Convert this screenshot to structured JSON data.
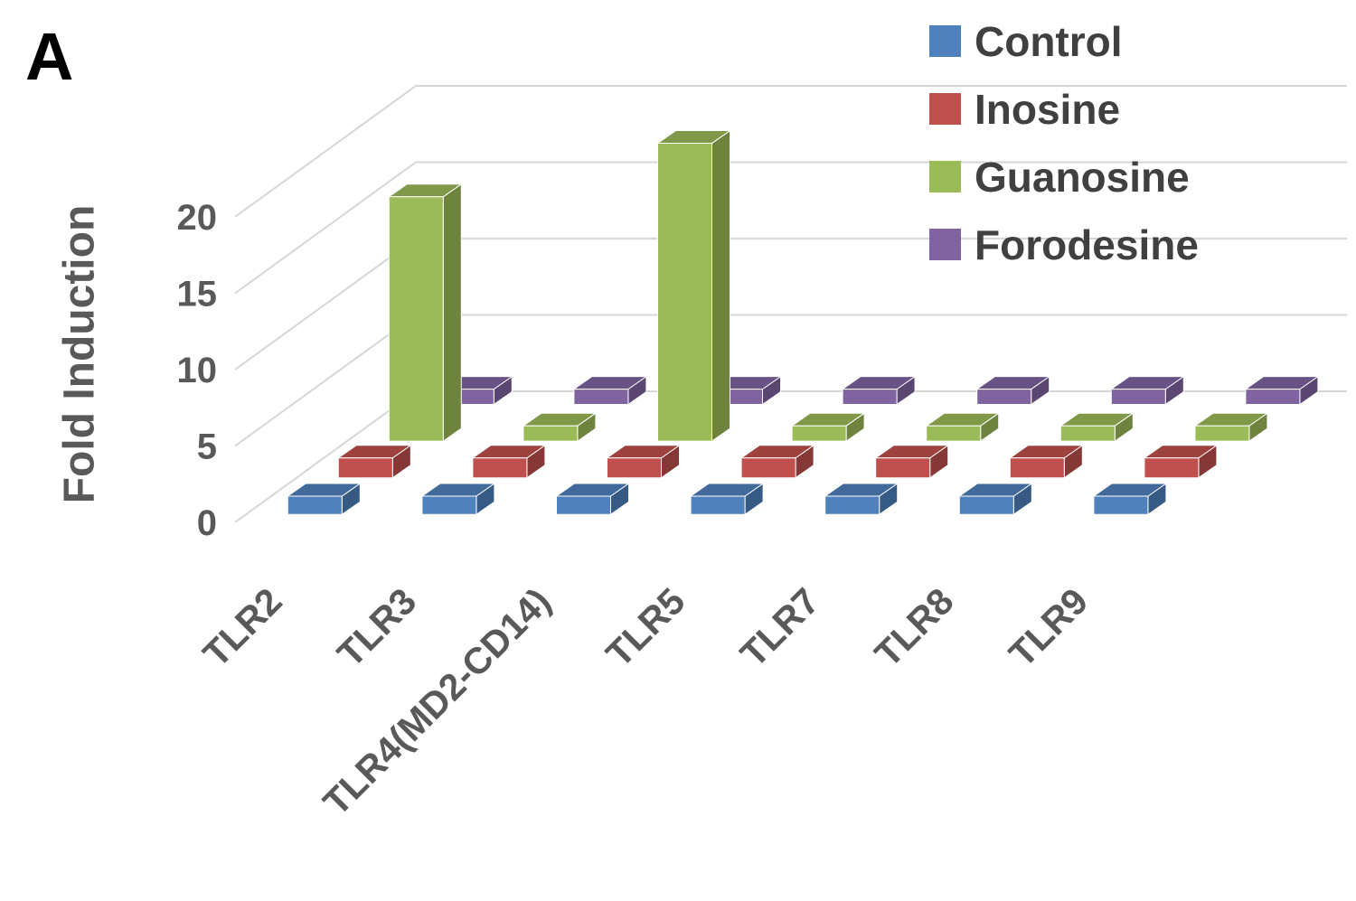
{
  "panel_label": "A",
  "y_axis": {
    "title": "Fold Induction",
    "ticks": [
      0,
      5,
      10,
      15,
      20
    ]
  },
  "x_axis": {
    "labels": [
      "TLR2",
      "TLR3",
      "TLR4(MD2-CD14)",
      "TLR5",
      "TLR7",
      "TLR8",
      "TLR9"
    ]
  },
  "legend": {
    "position": "top-right",
    "items": [
      {
        "label": "Control",
        "color": "#4F81BD"
      },
      {
        "label": "Inosine",
        "color": "#C0504D"
      },
      {
        "label": "Guanosine",
        "color": "#9BBB59"
      },
      {
        "label": "Forodesine",
        "color": "#8064A2"
      }
    ]
  },
  "colors": {
    "background": "#FFFFFF",
    "gridline": "#D6D6D6",
    "axis_text": "#595959",
    "legend_text": "#404040",
    "panel_label": "#000000"
  },
  "chart_data": {
    "type": "bar",
    "projection": "3d-column",
    "title": "",
    "xlabel": "",
    "ylabel": "Fold Induction",
    "ylim": [
      0,
      25
    ],
    "yticks": [
      0,
      5,
      10,
      15,
      20
    ],
    "grid": true,
    "legend_position": "top-right",
    "categories": [
      "TLR2",
      "TLR3",
      "TLR4(MD2-CD14)",
      "TLR5",
      "TLR7",
      "TLR8",
      "TLR9"
    ],
    "series": [
      {
        "name": "Control",
        "color": "#4F81BD",
        "values": [
          1.2,
          1.2,
          1.2,
          1.2,
          1.2,
          1.2,
          1.2
        ]
      },
      {
        "name": "Inosine",
        "color": "#C0504D",
        "values": [
          1.3,
          1.3,
          1.3,
          1.3,
          1.3,
          1.3,
          1.3
        ]
      },
      {
        "name": "Guanosine",
        "color": "#9BBB59",
        "values": [
          16.0,
          1.0,
          19.5,
          1.0,
          1.0,
          1.0,
          1.0
        ]
      },
      {
        "name": "Forodesine",
        "color": "#8064A2",
        "values": [
          1.0,
          1.0,
          1.0,
          1.0,
          1.0,
          1.0,
          1.0
        ]
      }
    ]
  }
}
